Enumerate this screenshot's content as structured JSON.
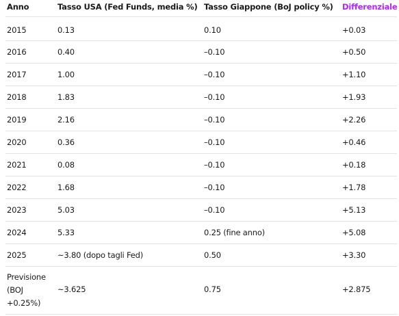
{
  "colors": {
    "accent": "#b026ff",
    "text": "#1a1a1a",
    "rule": "#e2e2e2"
  },
  "table": {
    "headers": [
      "Anno",
      "Tasso USA (Fed Funds, media %)",
      "Tasso Giappone (BoJ policy %)",
      "Differenziale"
    ],
    "rows": [
      [
        "2015",
        "0.13",
        "0.10",
        "+0.03"
      ],
      [
        "2016",
        "0.40",
        "–0.10",
        "+0.50"
      ],
      [
        "2017",
        "1.00",
        "–0.10",
        "+1.10"
      ],
      [
        "2018",
        "1.83",
        "–0.10",
        "+1.93"
      ],
      [
        "2019",
        "2.16",
        "–0.10",
        "+2.26"
      ],
      [
        "2020",
        "0.36",
        "–0.10",
        "+0.46"
      ],
      [
        "2021",
        "0.08",
        "–0.10",
        "+0.18"
      ],
      [
        "2022",
        "1.68",
        "–0.10",
        "+1.78"
      ],
      [
        "2023",
        "5.03",
        "–0.10",
        "+5.13"
      ],
      [
        "2024",
        "5.33",
        "0.25 (fine anno)",
        "+5.08"
      ],
      [
        "2025",
        "~3.80 (dopo tagli Fed)",
        "0.50",
        "+3.30"
      ],
      [
        "Previsione (BOJ +0.25%)",
        "~3.625",
        "0.75",
        "+2.875"
      ]
    ]
  }
}
